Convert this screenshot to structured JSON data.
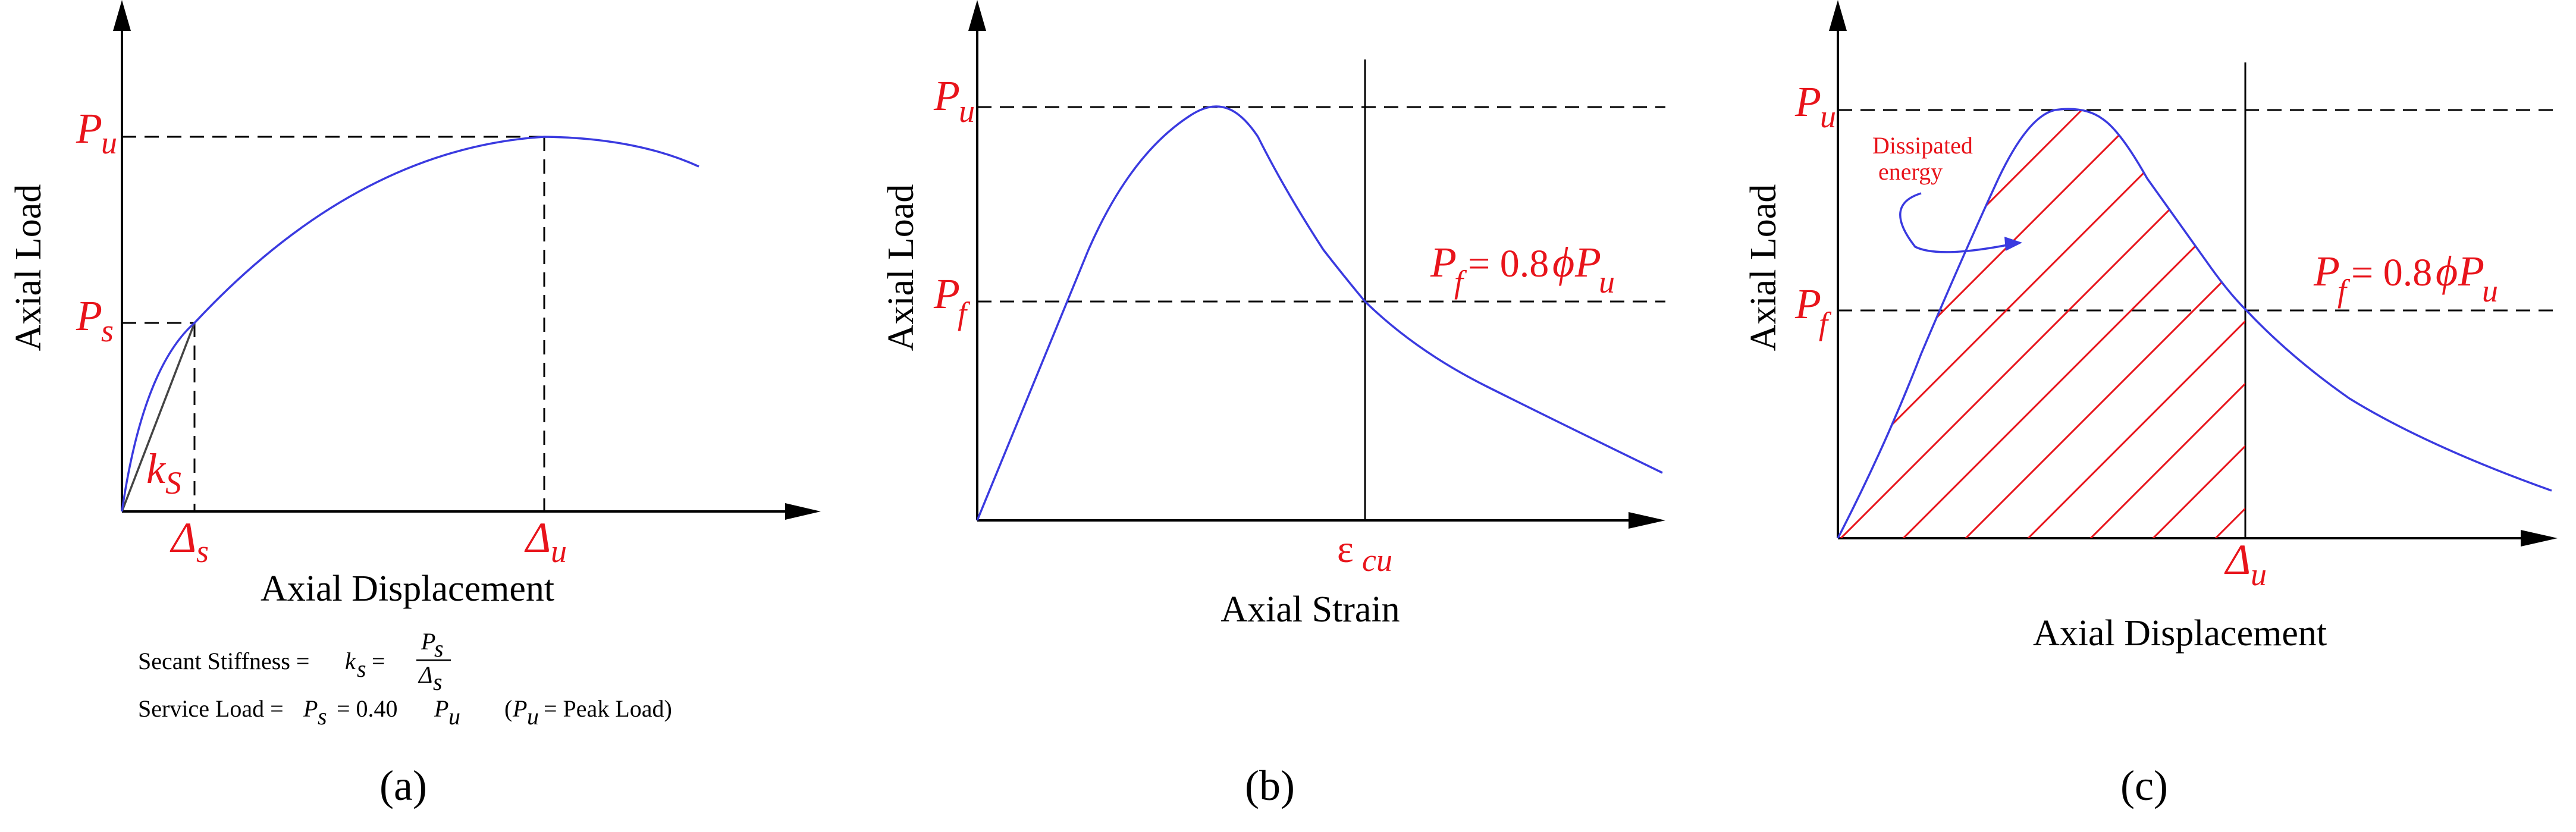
{
  "panel_a": {
    "caption": "(a)",
    "x_axis_label": "Axial Displacement",
    "y_axis_label": "Axial Load",
    "y_ticks": {
      "pu": "P",
      "pu_sub": "u",
      "ps": "P",
      "ps_sub": "s"
    },
    "x_ticks": {
      "ds": "Δ",
      "ds_sub": "s",
      "du": "Δ",
      "du_sub": "u"
    },
    "slope_label": {
      "main": "k",
      "sub": "S"
    },
    "note1": {
      "lead": "Secant Stiffness = ",
      "k": "k",
      "k_sub": "s",
      "eq": " = ",
      "num": "P",
      "num_sub": "s",
      "den": "Δ",
      "den_sub": "s"
    },
    "note2": {
      "lead": "Service Load =",
      "p": "P",
      "p_sub": "s",
      "mid": " = 0.40 ",
      "pu": "P",
      "pu_sub": "u",
      "paren_open": "(",
      "paren_p": "P",
      "paren_sub": "u",
      "paren_rest": " = Peak Load)"
    }
  },
  "panel_b": {
    "caption": "(b)",
    "x_axis_label": "Axial Strain",
    "y_axis_label": "Axial Load",
    "y_ticks": {
      "pu": "P",
      "pu_sub": "u",
      "pf": "P",
      "pf_sub": "f"
    },
    "x_ticks": {
      "ecu": "ε",
      "ecu_sub": "cu"
    },
    "pf_equation": {
      "p": "P",
      "p_sub": "f",
      "rest": "= 0.8",
      "phi": "ϕ",
      "pu": "P",
      "pu_sub": "u"
    }
  },
  "panel_c": {
    "caption": "(c)",
    "x_axis_label": "Axial Displacement",
    "y_axis_label": "Axial Load",
    "y_ticks": {
      "pu": "P",
      "pu_sub": "u",
      "pf": "P",
      "pf_sub": "f"
    },
    "x_ticks": {
      "du": "Δ",
      "du_sub": "u"
    },
    "pf_equation": {
      "p": "P",
      "p_sub": "f",
      "rest": "= 0.8",
      "phi": "ϕ",
      "pu": "P",
      "pu_sub": "u"
    },
    "annotation": {
      "line1": "Dissipated",
      "line2": "energy"
    }
  },
  "colors": {
    "curve": "#3a3ae0",
    "label_red": "#e8141b",
    "axis": "#000000"
  }
}
